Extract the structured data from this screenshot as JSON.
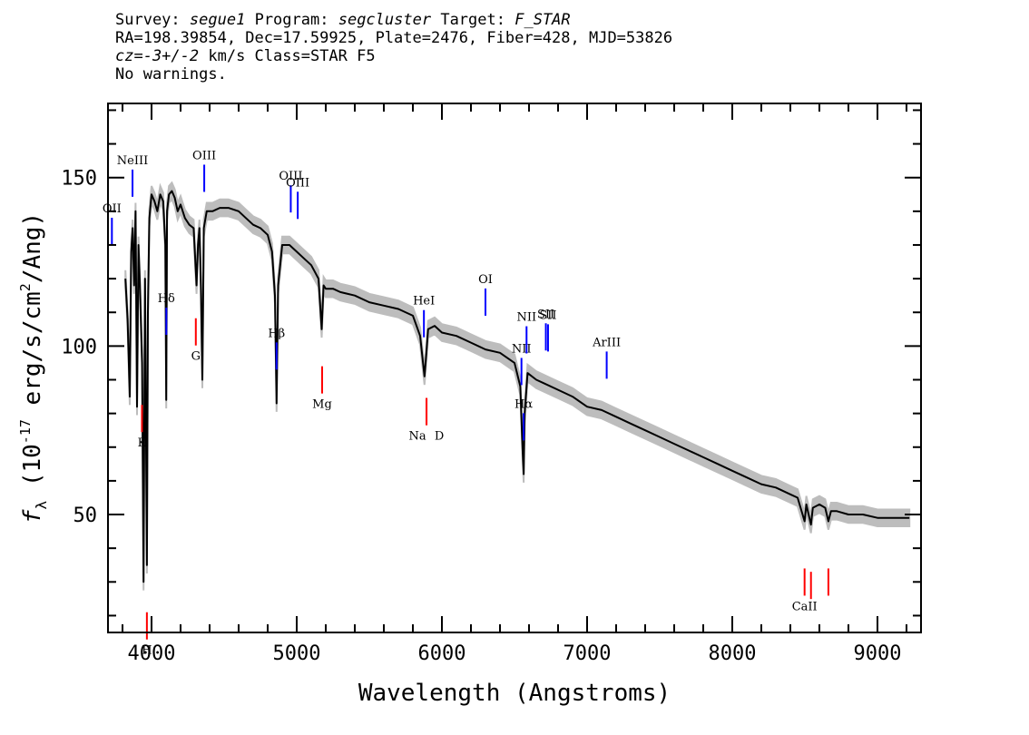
{
  "header": {
    "survey_label": "Survey:",
    "survey": "segue1",
    "program_label": "Program:",
    "program": "segcluster",
    "target_label": "Target:",
    "target": "F_STAR",
    "line2": "RA=198.39854, Dec=17.59925, Plate=2476, Fiber=428, MJD=53826",
    "line3_z": "cz=-3+/-2",
    "line3_rest": " km/s Class=STAR F5",
    "line4": "No warnings."
  },
  "chart_data": {
    "type": "line",
    "xlabel": "Wavelength (Angstroms)",
    "ylabel_prefix": "f",
    "ylabel_sub": "λ",
    "ylabel_main": "(10",
    "ylabel_exp1": "-17",
    "ylabel_mid": " erg/s/cm",
    "ylabel_exp2": "2",
    "ylabel_end": "/Ang)",
    "xlim": [
      3700,
      9300
    ],
    "ylim": [
      15,
      172
    ],
    "x_ticks": [
      "4000",
      "5000",
      "6000",
      "7000",
      "8000",
      "9000"
    ],
    "x_tick_values": [
      4000,
      5000,
      6000,
      7000,
      8000,
      9000
    ],
    "y_ticks": [
      "50",
      "100",
      "150"
    ],
    "y_tick_values": [
      50,
      100,
      150
    ],
    "spectrum": {
      "x": [
        3820,
        3835,
        3850,
        3860,
        3870,
        3880,
        3890,
        3900,
        3910,
        3920,
        3935,
        3945,
        3955,
        3968,
        3975,
        3985,
        4000,
        4020,
        4040,
        4060,
        4080,
        4095,
        4101,
        4107,
        4120,
        4140,
        4160,
        4180,
        4200,
        4230,
        4260,
        4290,
        4310,
        4320,
        4330,
        4340,
        4350,
        4360,
        4380,
        4420,
        4470,
        4530,
        4600,
        4650,
        4700,
        4750,
        4800,
        4830,
        4850,
        4861,
        4872,
        4900,
        4950,
        5000,
        5050,
        5100,
        5150,
        5172,
        5185,
        5200,
        5250,
        5300,
        5400,
        5500,
        5600,
        5700,
        5800,
        5850,
        5880,
        5893,
        5905,
        5950,
        6000,
        6100,
        6200,
        6300,
        6400,
        6500,
        6540,
        6555,
        6563,
        6570,
        6590,
        6650,
        6700,
        6800,
        6900,
        7000,
        7100,
        7200,
        7300,
        7400,
        7500,
        7600,
        7700,
        7800,
        7900,
        8000,
        8100,
        8200,
        8300,
        8400,
        8450,
        8498,
        8510,
        8542,
        8555,
        8600,
        8640,
        8662,
        8680,
        8720,
        8800,
        8900,
        9000,
        9100,
        9200,
        9220
      ],
      "y": [
        120,
        108,
        85,
        128,
        135,
        118,
        140,
        82,
        130,
        118,
        95,
        30,
        120,
        35,
        110,
        138,
        145,
        143,
        140,
        145,
        143,
        130,
        84,
        140,
        145,
        146,
        144,
        140,
        142,
        138,
        136,
        135,
        118,
        130,
        135,
        118,
        90,
        135,
        140,
        140,
        141,
        141,
        140,
        138,
        136,
        135,
        133,
        128,
        115,
        83,
        118,
        130,
        130,
        128,
        126,
        124,
        120,
        105,
        118,
        117,
        117,
        116,
        115,
        113,
        112,
        111,
        109,
        103,
        91,
        98,
        105,
        106,
        104,
        103,
        101,
        99,
        98,
        95,
        88,
        70,
        62,
        80,
        92,
        90,
        89,
        87,
        85,
        82,
        81,
        79,
        77,
        75,
        73,
        71,
        69,
        67,
        65,
        63,
        61,
        59,
        58,
        56,
        55,
        48,
        53,
        47,
        52,
        53,
        52,
        48,
        51,
        51,
        50,
        50,
        49,
        49,
        49,
        49
      ]
    },
    "emission_lines": [
      {
        "name": "OII",
        "wave": 3727
      },
      {
        "name": "NeIII",
        "wave": 3869
      },
      {
        "name": "Hδ",
        "wave": 4102
      },
      {
        "name": "OIII",
        "wave": 4363
      },
      {
        "name": "Hβ",
        "wave": 4861
      },
      {
        "name": "OIII",
        "wave": 4959
      },
      {
        "name": "OIII",
        "wave": 5007
      },
      {
        "name": "HeI",
        "wave": 5876
      },
      {
        "name": "OI",
        "wave": 6300
      },
      {
        "name": "NII",
        "wave": 6548
      },
      {
        "name": "Hα",
        "wave": 6563
      },
      {
        "name": "NII",
        "wave": 6583
      },
      {
        "name": "SII",
        "wave": 6716
      },
      {
        "name": "SII",
        "wave": 6731
      },
      {
        "name": "ArIII",
        "wave": 7135
      }
    ],
    "absorption_lines": [
      {
        "name": "K",
        "wave": 3934
      },
      {
        "name": "H",
        "wave": 3968
      },
      {
        "name": "G",
        "wave": 4305
      },
      {
        "name": "Mg",
        "wave": 5175
      },
      {
        "name": "Na",
        "wave": 5894
      },
      {
        "name": "D",
        "wave": 5894
      },
      {
        "name": "CaII",
        "wave": 8498
      },
      {
        "name": "CaII",
        "wave": 8542
      },
      {
        "name": "CaII",
        "wave": 8662
      }
    ],
    "colors": {
      "spectrum": "#000000",
      "error_band": "#bdbdbd",
      "emission": "#0000ff",
      "absorption": "#ff0000",
      "axes": "#000000"
    }
  }
}
